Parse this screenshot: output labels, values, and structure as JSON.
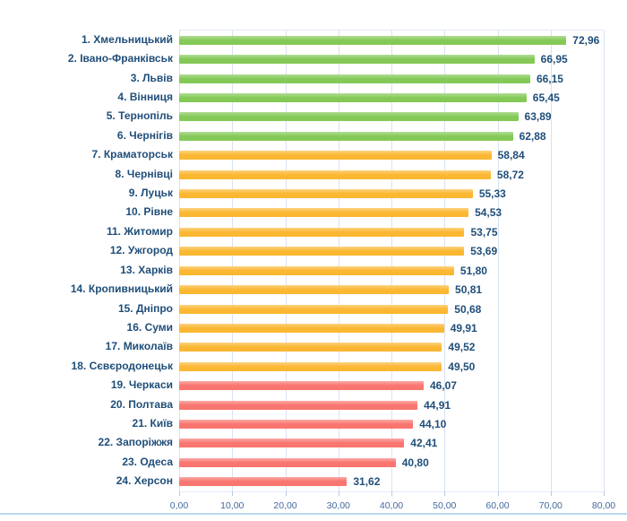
{
  "chart_data": {
    "type": "bar",
    "orientation": "horizontal",
    "title": "",
    "xlabel": "",
    "ylabel": "",
    "xlim": [
      0,
      80
    ],
    "grid": true,
    "legend": false,
    "categories": [
      "1. Хмельницький",
      "2. Івано-Франківськ",
      "3. Львів",
      "4. Вінниця",
      "5. Тернопіль",
      "6. Чернігів",
      "7. Краматорськ",
      "8. Чернівці",
      "9. Луцьк",
      "10. Рівне",
      "11. Житомир",
      "12. Ужгород",
      "13. Харків",
      "14. Кропивницький",
      "15. Дніпро",
      "16. Суми",
      "17. Миколаїв",
      "18. Сєвєродонецьк",
      "19. Черкаси",
      "20. Полтава",
      "21. Київ",
      "22. Запоріжжя",
      "23. Одеса",
      "24. Херсон"
    ],
    "values": [
      72.96,
      66.95,
      66.15,
      65.45,
      63.89,
      62.88,
      58.84,
      58.72,
      55.33,
      54.53,
      53.75,
      53.69,
      51.8,
      50.81,
      50.68,
      49.91,
      49.52,
      49.5,
      46.07,
      44.91,
      44.1,
      42.41,
      40.8,
      31.62
    ],
    "value_labels": [
      "72,96",
      "66,95",
      "66,15",
      "65,45",
      "63,89",
      "62,88",
      "58,84",
      "58,72",
      "55,33",
      "54,53",
      "53,75",
      "53,69",
      "51,80",
      "50,81",
      "50,68",
      "49,91",
      "49,52",
      "49,50",
      "46,07",
      "44,91",
      "44,10",
      "42,41",
      "40,80",
      "31,62"
    ],
    "groups": [
      "green",
      "green",
      "green",
      "green",
      "green",
      "green",
      "yellow",
      "yellow",
      "yellow",
      "yellow",
      "yellow",
      "yellow",
      "yellow",
      "yellow",
      "yellow",
      "yellow",
      "yellow",
      "yellow",
      "red",
      "red",
      "red",
      "red",
      "red",
      "red"
    ],
    "colors": {
      "green": "#84c957",
      "yellow": "#fbb731",
      "red": "#f9756f"
    },
    "x_ticks": [
      {
        "value": 0,
        "label": "0,00"
      },
      {
        "value": 10,
        "label": "10,00"
      },
      {
        "value": 20,
        "label": "20,00"
      },
      {
        "value": 30,
        "label": "30,00"
      },
      {
        "value": 40,
        "label": "40,00"
      },
      {
        "value": 50,
        "label": "50,00"
      },
      {
        "value": 60,
        "label": "60,00"
      },
      {
        "value": 70,
        "label": "70,00"
      },
      {
        "value": 80,
        "label": "80,00"
      }
    ]
  },
  "styles": {
    "category_label_color": "#1f4e79",
    "value_label_color": "#1f4e79",
    "axis_label_color": "#44699e",
    "gridline_color": "#d9e2f2",
    "divider_color": "#bdd7ee",
    "background": "#ffffff"
  }
}
